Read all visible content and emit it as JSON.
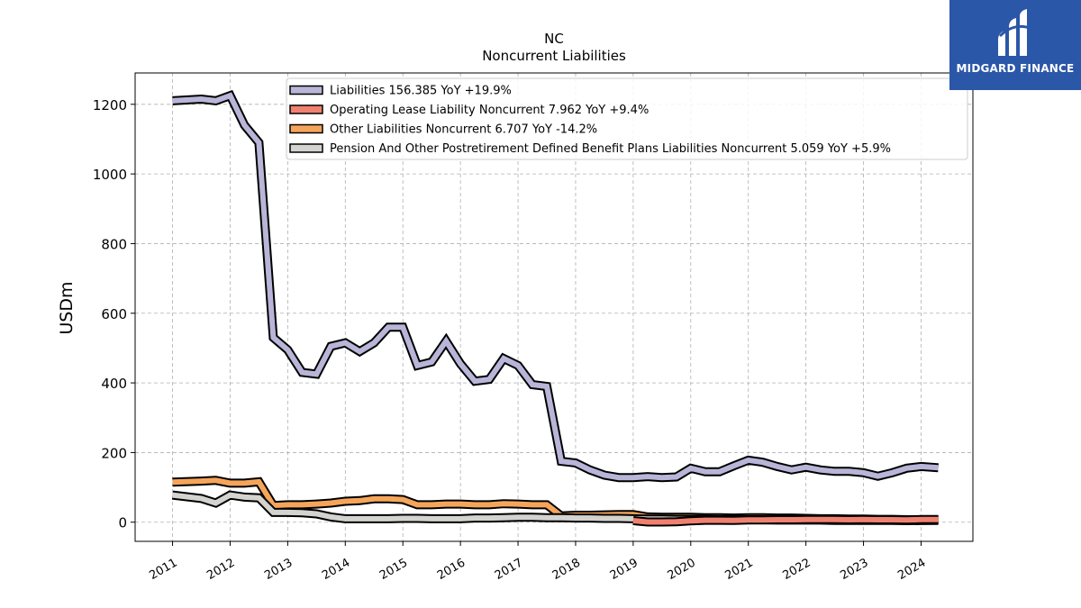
{
  "title": "NC",
  "subtitle": "Noncurrent  Liabilities",
  "logo": {
    "text": "MIDGARD FINANCE",
    "background": "#2b57a8"
  },
  "chart_data": {
    "type": "line",
    "ylabel": "USDm",
    "xlabel": "",
    "ylim": [
      -55,
      1290
    ],
    "xlim": [
      2010.35,
      2024.9
    ],
    "yticks": [
      0,
      200,
      400,
      600,
      800,
      1000,
      1200
    ],
    "xticks": [
      "2011",
      "2012",
      "2013",
      "2014",
      "2015",
      "2016",
      "2017",
      "2018",
      "2019",
      "2020",
      "2021",
      "2022",
      "2023",
      "2024"
    ],
    "grid": true,
    "legend_position": "top",
    "series": [
      {
        "name": "Liabilities",
        "legend": "Liabilities  156.385 YoY +19.9%",
        "color": "#b8b5d8",
        "x": [
          2011.0,
          2011.5,
          2011.75,
          2012.0,
          2012.25,
          2012.5,
          2012.75,
          2013.0,
          2013.25,
          2013.5,
          2013.75,
          2014.0,
          2014.25,
          2014.5,
          2014.75,
          2015.0,
          2015.25,
          2015.5,
          2015.75,
          2016.0,
          2016.25,
          2016.5,
          2016.75,
          2017.0,
          2017.25,
          2017.5,
          2017.75,
          2018.0,
          2018.25,
          2018.5,
          2018.75,
          2019.0,
          2019.25,
          2019.5,
          2019.75,
          2020.0,
          2020.25,
          2020.5,
          2020.75,
          2021.0,
          2021.25,
          2021.5,
          2021.75,
          2022.0,
          2022.25,
          2022.5,
          2022.75,
          2023.0,
          2023.25,
          2023.5,
          2023.75,
          2024.0,
          2024.3
        ],
        "y": [
          1210,
          1215,
          1210,
          1225,
          1140,
          1090,
          530,
          495,
          430,
          425,
          505,
          515,
          490,
          515,
          560,
          560,
          450,
          460,
          520,
          455,
          405,
          410,
          470,
          450,
          395,
          390,
          175,
          170,
          150,
          135,
          128,
          128,
          131,
          128,
          130,
          155,
          145,
          145,
          162,
          178,
          172,
          160,
          150,
          158,
          150,
          146,
          146,
          142,
          132,
          142,
          155,
          160,
          156.385
        ]
      },
      {
        "name": "Operating Lease Liability Noncurrent",
        "legend": "Operating Lease Liability Noncurrent  7.962 YoY +9.4%",
        "color": "#f08070",
        "x": [
          2019.0,
          2019.25,
          2019.5,
          2019.75,
          2020.0,
          2020.25,
          2020.5,
          2020.75,
          2021.0,
          2021.25,
          2021.5,
          2021.75,
          2022.0,
          2022.25,
          2022.5,
          2022.75,
          2023.0,
          2023.25,
          2023.5,
          2023.75,
          2024.0,
          2024.3
        ],
        "y": [
          4.5,
          0.5,
          0.5,
          1.0,
          4.0,
          5.5,
          5.5,
          5.0,
          6.5,
          6.5,
          7.0,
          7.0,
          7.5,
          7.5,
          7.5,
          7.0,
          7.5,
          7.0,
          7.0,
          6.5,
          7.5,
          7.962
        ]
      },
      {
        "name": "Other Liabilities Noncurrent",
        "legend": "Other Liabilities Noncurrent  6.707 YoY -14.2%",
        "color": "#f5a55a",
        "x": [
          2011.0,
          2011.5,
          2011.75,
          2012.0,
          2012.25,
          2012.5,
          2012.75,
          2013.0,
          2013.25,
          2013.5,
          2013.75,
          2014.0,
          2014.25,
          2014.5,
          2014.75,
          2015.0,
          2015.25,
          2015.5,
          2015.75,
          2016.0,
          2016.25,
          2016.5,
          2016.75,
          2017.0,
          2017.25,
          2017.5,
          2017.75,
          2018.0,
          2018.25,
          2018.5,
          2018.75,
          2019.0,
          2019.25,
          2019.5,
          2019.75,
          2020.0,
          2020.25,
          2020.5,
          2020.75,
          2021.0,
          2021.25,
          2021.5,
          2021.75,
          2022.0,
          2022.25,
          2022.5,
          2022.75,
          2023.0,
          2023.25,
          2023.5,
          2023.75,
          2024.0,
          2024.3
        ],
        "y": [
          115,
          118,
          120,
          112,
          112,
          116,
          48,
          50,
          50,
          52,
          55,
          60,
          62,
          67,
          67,
          65,
          50,
          50,
          52,
          52,
          50,
          50,
          53,
          52,
          50,
          50,
          18,
          20,
          20,
          21,
          22,
          22,
          15,
          14,
          14,
          14,
          13,
          13,
          12,
          13,
          13,
          12,
          12,
          11,
          10,
          10,
          9,
          9,
          8,
          8,
          7,
          7,
          6.707
        ]
      },
      {
        "name": "Pension And Other Postretirement Defined Benefit Plans Liabilities Noncurrent",
        "legend": "Pension And Other Postretirement Defined Benefit Plans Liabilities Noncurrent  5.059 YoY +5.9%",
        "color": "#d3d3cf",
        "x": [
          2011.0,
          2011.5,
          2011.75,
          2012.0,
          2012.25,
          2012.5,
          2012.75,
          2013.0,
          2013.25,
          2013.5,
          2013.75,
          2014.0,
          2014.25,
          2014.5,
          2014.75,
          2015.0,
          2015.25,
          2015.5,
          2015.75,
          2016.0,
          2016.25,
          2016.5,
          2016.75,
          2017.0,
          2017.25,
          2017.5,
          2017.75,
          2018.0,
          2018.25,
          2018.5,
          2018.75,
          2019.0,
          2019.25,
          2019.5,
          2019.75,
          2020.0,
          2020.25,
          2020.5,
          2020.75,
          2021.0,
          2021.25,
          2021.5,
          2021.75,
          2022.0,
          2022.25,
          2022.5,
          2022.75,
          2023.0,
          2023.25,
          2023.5,
          2023.75,
          2024.0,
          2024.3
        ],
        "y": [
          78,
          68,
          55,
          78,
          72,
          70,
          28,
          28,
          27,
          24,
          15,
          10,
          10,
          10,
          10,
          11,
          11,
          10,
          10,
          10,
          12,
          12,
          13,
          14,
          14,
          13,
          13,
          12,
          12,
          11,
          11,
          10,
          9,
          9,
          8,
          8,
          8,
          7,
          7,
          7,
          7,
          6,
          6,
          6,
          6,
          5,
          5,
          5,
          5,
          5,
          4.5,
          4.8,
          5.059
        ]
      }
    ]
  }
}
